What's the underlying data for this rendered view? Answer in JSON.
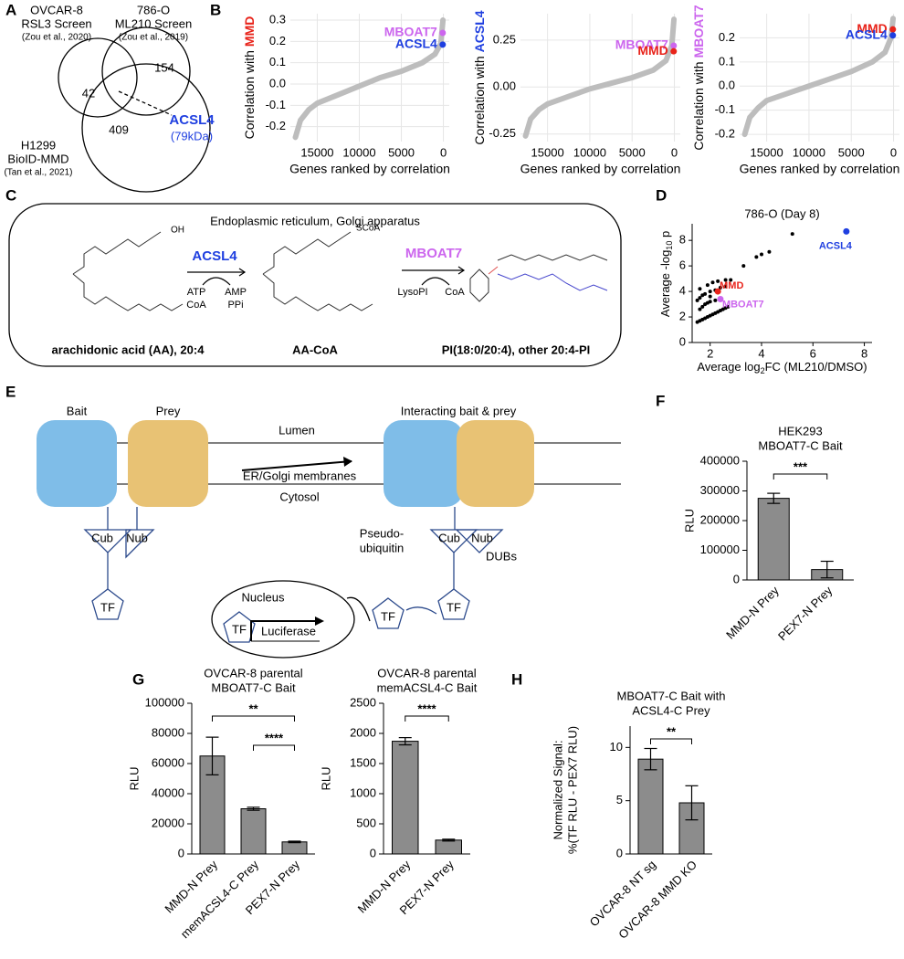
{
  "panel_labels": [
    "A",
    "B",
    "C",
    "D",
    "E",
    "F",
    "G",
    "H"
  ],
  "venn": {
    "sets": [
      {
        "lines": [
          "OVCAR-8",
          "RSL3 Screen"
        ],
        "ref": "(Zou et al., 2020)"
      },
      {
        "lines": [
          "786-O",
          "ML210 Screen"
        ],
        "ref": "(Zou et al., 2019)"
      },
      {
        "lines": [
          "H1299",
          "BioID-MMD"
        ],
        "ref": "(Tan et al., 2021)"
      }
    ],
    "counts": [
      42,
      154,
      409
    ],
    "callout": {
      "label": "ACSL4",
      "detail": "(79kDa)"
    }
  },
  "pathway": {
    "compartment": "Endoplasmic reticulum, Golgi apparatus",
    "steps": [
      {
        "enzyme": "ACSL4",
        "inputs": [
          "ATP",
          "CoA"
        ],
        "outputs": [
          "AMP",
          "PPi"
        ]
      },
      {
        "enzyme": "MBOAT7",
        "inputs": [
          "LysoPI"
        ],
        "outputs": [
          "CoA"
        ]
      }
    ],
    "molecules": [
      "arachidonic acid (AA), 20:4",
      "AA-CoA",
      "PI(18:0/20:4), other 20:4-PI"
    ],
    "groups": [
      "OH",
      "SCoA"
    ]
  },
  "split_ubiquitin": {
    "bait": "Bait",
    "prey": "Prey",
    "lumen": "Lumen",
    "membrane": "ER/Golgi membranes",
    "cytosol": "Cytosol",
    "complex": "Interacting bait & prey",
    "cub": "Cub",
    "nub": "Nub",
    "tf": "TF",
    "pseudo": [
      "Pseudo-",
      "ubiquitin"
    ],
    "dubs": "DUBs",
    "nucleus": "Nucleus",
    "reporter": "Luciferase"
  },
  "chart_data": [
    {
      "type": "line",
      "ylabel": "Correlation with",
      "ylabel_gene": "MMD",
      "ylabel_gene_color": "#e8231a",
      "xlabel": "Genes ranked by correlation",
      "xlim": [
        18200,
        -700
      ],
      "xticks": [
        15000,
        10000,
        5000,
        0
      ],
      "ylim": [
        -0.27,
        0.33
      ],
      "yticks": [
        -0.2,
        -0.1,
        {
          "value": 0,
          "label": "0.0"
        },
        0.1,
        0.2,
        0.3
      ],
      "grid": true,
      "series": [
        {
          "color": "#bdbdbd",
          "x": [
            17600,
            17000,
            16000,
            15000,
            12500,
            10000,
            7500,
            5000,
            2500,
            1000,
            300,
            50
          ],
          "values": [
            -0.25,
            -0.17,
            -0.12,
            -0.09,
            -0.05,
            -0.01,
            0.03,
            0.06,
            0.1,
            0.14,
            0.19,
            0.3
          ]
        }
      ],
      "highlights": [
        {
          "label": "MBOAT7",
          "color": "#cc66ee",
          "x": 80,
          "y": 0.24
        },
        {
          "label": "ACSL4",
          "color": "#1f3fe0",
          "x": 80,
          "y": 0.185
        }
      ]
    },
    {
      "type": "line",
      "ylabel": "Correlation with",
      "ylabel_gene": "ACSL4",
      "ylabel_gene_color": "#1f3fe0",
      "xlabel": "Genes ranked by correlation",
      "xlim": [
        18200,
        -700
      ],
      "xticks": [
        15000,
        10000,
        5000,
        0
      ],
      "ylim": [
        -0.29,
        0.39
      ],
      "yticks": [
        {
          "value": -0.25,
          "label": "-0.25"
        },
        {
          "value": 0,
          "label": "0.00"
        },
        0.25
      ],
      "grid": true,
      "series": [
        {
          "color": "#bdbdbd",
          "x": [
            17600,
            17000,
            16000,
            15000,
            12500,
            10000,
            7500,
            5000,
            2500,
            1000,
            300,
            50
          ],
          "values": [
            -0.26,
            -0.17,
            -0.12,
            -0.09,
            -0.05,
            -0.01,
            0.02,
            0.05,
            0.09,
            0.14,
            0.22,
            0.36
          ]
        }
      ],
      "highlights": [
        {
          "label": "MBOAT7",
          "color": "#cc66ee",
          "x": 80,
          "y": 0.22
        },
        {
          "label": "MMD",
          "color": "#e8231a",
          "x": 80,
          "y": 0.19
        }
      ]
    },
    {
      "type": "line",
      "ylabel": "Correlation with",
      "ylabel_gene": "MBOAT7",
      "ylabel_gene_color": "#cc66ee",
      "xlabel": "Genes ranked by correlation",
      "xlim": [
        18200,
        -700
      ],
      "xticks": [
        15000,
        10000,
        5000,
        0
      ],
      "ylim": [
        -0.23,
        0.3
      ],
      "yticks": [
        -0.2,
        -0.1,
        {
          "value": 0,
          "label": "0.0"
        },
        0.1,
        0.2
      ],
      "grid": true,
      "series": [
        {
          "color": "#bdbdbd",
          "x": [
            17600,
            17000,
            16000,
            15000,
            12500,
            10000,
            7500,
            5000,
            2500,
            1000,
            300,
            50
          ],
          "values": [
            -0.2,
            -0.13,
            -0.09,
            -0.06,
            -0.03,
            0,
            0.03,
            0.06,
            0.1,
            0.14,
            0.2,
            0.28
          ]
        }
      ],
      "highlights": [
        {
          "label": "MMD",
          "color": "#e8231a",
          "x": 80,
          "y": 0.235
        },
        {
          "label": "ACSL4",
          "color": "#1f3fe0",
          "x": 80,
          "y": 0.21
        }
      ]
    },
    {
      "type": "scatter",
      "title": "786-O (Day 8)",
      "xlabel": [
        "Average log",
        "2",
        "FC (ML210/DMSO)"
      ],
      "ylabel": [
        "Average -log",
        "10",
        " p"
      ],
      "xlim": [
        1.3,
        8.3
      ],
      "ylim": [
        0,
        9.3
      ],
      "xticks": [
        2,
        4,
        6,
        8
      ],
      "yticks": [
        0,
        2,
        4,
        6,
        8
      ],
      "grid": false,
      "series": [
        {
          "color": "#000000",
          "x": [
            1.5,
            1.6,
            1.7,
            1.8,
            1.9,
            2.0,
            2.1,
            2.2,
            2.3,
            2.4,
            2.5,
            2.6,
            2.7,
            1.6,
            1.7,
            1.8,
            1.9,
            2.0,
            2.2,
            2.4,
            1.5,
            1.6,
            1.7,
            1.8,
            2.0,
            2.2,
            2.4,
            2.6,
            2.8,
            1.6,
            1.9,
            2.1,
            2.3,
            2.6,
            3.3,
            3.8,
            4.0,
            4.3,
            5.2,
            2.0
          ],
          "values": [
            1.6,
            1.7,
            1.8,
            1.9,
            2.0,
            2.1,
            2.2,
            2.3,
            2.4,
            2.5,
            2.6,
            2.7,
            2.8,
            2.6,
            2.8,
            3.0,
            3.1,
            3.2,
            3.3,
            3.4,
            3.3,
            3.5,
            3.7,
            3.8,
            4.0,
            4.1,
            4.3,
            4.4,
            4.9,
            4.2,
            4.5,
            4.7,
            4.8,
            4.9,
            6.0,
            6.7,
            6.9,
            7.1,
            8.5,
            3.6
          ]
        }
      ],
      "highlights": [
        {
          "label": "ACSL4",
          "color": "#1f3fe0",
          "x": 7.3,
          "y": 8.7
        },
        {
          "label": "MMD",
          "color": "#e8231a",
          "x": 2.3,
          "y": 4.0
        },
        {
          "label": "MBOAT7",
          "color": "#cc66ee",
          "x": 2.4,
          "y": 3.4
        }
      ]
    },
    {
      "type": "bar",
      "title": [
        "HEK293",
        "MBOAT7-C Bait"
      ],
      "ylabel": [
        "RLU"
      ],
      "categories": [
        "MMD-N Prey",
        "PEX7-N Prey"
      ],
      "values": [
        275000,
        35000
      ],
      "errors": [
        17000,
        28000
      ],
      "color": "#8c8c8c",
      "ylim": [
        0,
        400000
      ],
      "yticks": [
        0,
        100000,
        200000,
        300000,
        400000
      ],
      "significance": [
        "***"
      ]
    },
    {
      "type": "bar",
      "title": [
        "OVCAR-8 parental",
        "MBOAT7-C Bait"
      ],
      "ylabel": [
        "RLU"
      ],
      "categories": [
        "MMD-N Prey",
        "memACSL4-C Prey",
        "PEX7-N Prey"
      ],
      "values": [
        65000,
        30000,
        8000
      ],
      "errors": [
        12500,
        1000,
        500
      ],
      "color": "#8c8c8c",
      "ylim": [
        0,
        100000
      ],
      "yticks": [
        0,
        20000,
        40000,
        60000,
        80000,
        100000
      ],
      "significance": [
        "**",
        "****"
      ]
    },
    {
      "type": "bar",
      "title": [
        "OVCAR-8 parental",
        "memACSL4-C Bait"
      ],
      "ylabel": [
        "RLU"
      ],
      "categories": [
        "MMD-N Prey",
        "PEX7-N Prey"
      ],
      "values": [
        1870,
        230
      ],
      "errors": [
        60,
        15
      ],
      "color": "#8c8c8c",
      "ylim": [
        0,
        2500
      ],
      "yticks": [
        0,
        500,
        1000,
        1500,
        2000,
        2500
      ],
      "significance": [
        "****"
      ]
    },
    {
      "type": "bar",
      "title": [
        "MBOAT7-C Bait with",
        "ACSL4-C Prey"
      ],
      "ylabel": [
        "Normalized Signal:",
        "%(TF RLU - PEX7 RLU)"
      ],
      "categories": [
        "OVCAR-8 NT sg",
        "OVCAR-8 MMD KO"
      ],
      "values": [
        8.9,
        4.8
      ],
      "errors": [
        1.0,
        1.6
      ],
      "color": "#8c8c8c",
      "ylim": [
        0,
        12
      ],
      "yticks": [
        0,
        5,
        10
      ],
      "significance": [
        "**"
      ]
    }
  ]
}
